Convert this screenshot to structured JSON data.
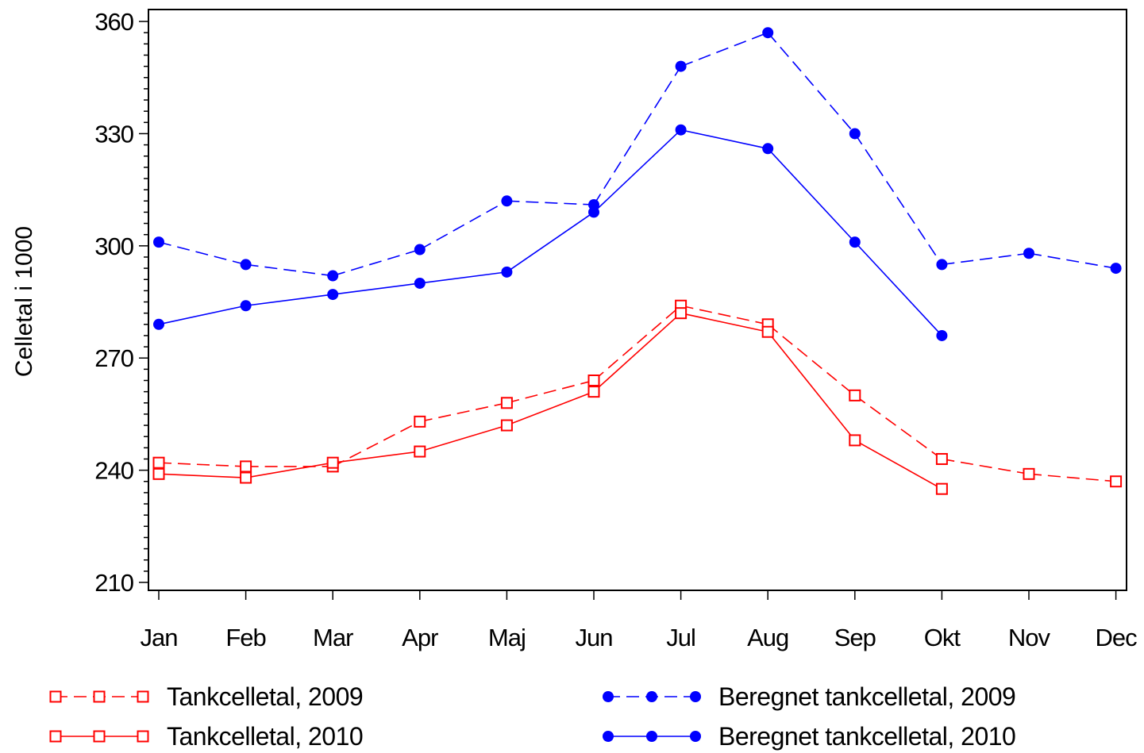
{
  "chart_data": {
    "type": "line",
    "title": "",
    "xlabel": "",
    "ylabel": "Celletal i 1000",
    "categories": [
      "Jan",
      "Feb",
      "Mar",
      "Apr",
      "Maj",
      "Jun",
      "Jul",
      "Aug",
      "Sep",
      "Okt",
      "Nov",
      "Dec"
    ],
    "ylim": [
      210,
      360
    ],
    "yticks": [
      "210",
      "240",
      "270",
      "300",
      "330",
      "360"
    ],
    "grid": false,
    "legend_position": "bottom",
    "series": [
      {
        "name": "Tankcelletal, 2009",
        "color": "#ff0000",
        "line_style": "dashed",
        "marker": "open-square",
        "values": [
          242,
          241,
          241,
          253,
          258,
          264,
          284,
          279,
          260,
          243,
          239,
          237
        ]
      },
      {
        "name": "Tankcelletal, 2010",
        "color": "#ff0000",
        "line_style": "solid",
        "marker": "open-square",
        "values": [
          239,
          238,
          242,
          245,
          252,
          261,
          282,
          277,
          248,
          235,
          null,
          null
        ]
      },
      {
        "name": "Beregnet tankcelletal, 2009",
        "color": "#0000ff",
        "line_style": "dashed",
        "marker": "filled-circle",
        "values": [
          301,
          295,
          292,
          299,
          312,
          311,
          348,
          357,
          330,
          295,
          298,
          294
        ]
      },
      {
        "name": "Beregnet tankcelletal, 2010",
        "color": "#0000ff",
        "line_style": "solid",
        "marker": "filled-circle",
        "values": [
          279,
          284,
          287,
          290,
          293,
          309,
          331,
          326,
          301,
          276,
          null,
          null
        ]
      }
    ]
  }
}
